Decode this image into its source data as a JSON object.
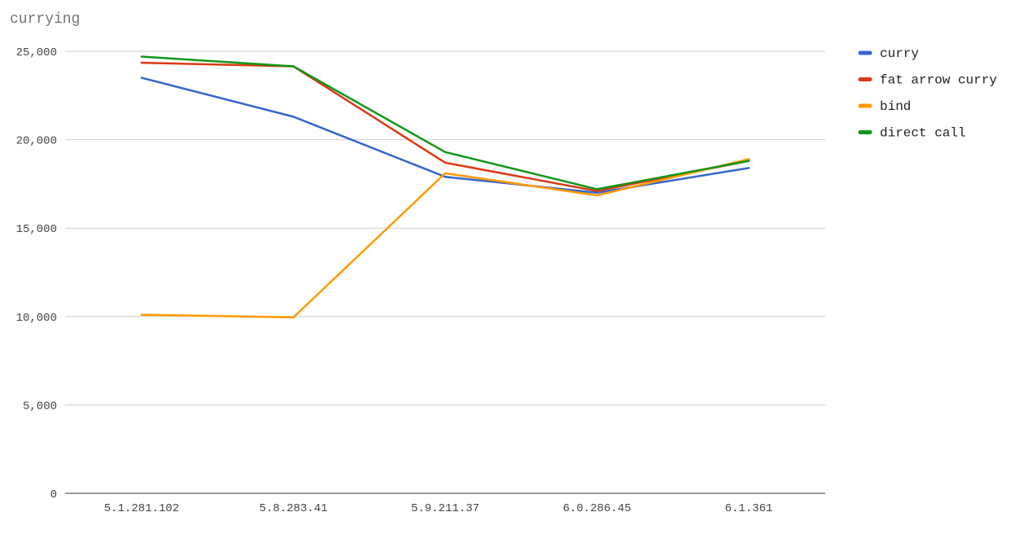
{
  "chart_data": {
    "type": "line",
    "title": "currying",
    "xlabel": "",
    "ylabel": "",
    "categories": [
      "5.1.281.102",
      "5.8.283.41",
      "5.9.211.37",
      "6.0.286.45",
      "6.1.361"
    ],
    "ylim": [
      0,
      25000
    ],
    "yticks": [
      0,
      5000,
      10000,
      15000,
      20000,
      25000
    ],
    "ytick_labels": [
      "0",
      "5,000",
      "10,000",
      "15,000",
      "20,000",
      "25,000"
    ],
    "grid": true,
    "legend_position": "right",
    "series": [
      {
        "name": "curry",
        "color": "#3366cc",
        "values": [
          23500,
          21300,
          17900,
          17000,
          18400
        ]
      },
      {
        "name": "fat arrow curry",
        "color": "#dc3912",
        "values": [
          24350,
          24150,
          18700,
          17100,
          18800
        ]
      },
      {
        "name": "bind",
        "color": "#ff9900",
        "values": [
          10100,
          9950,
          18100,
          16850,
          18900
        ]
      },
      {
        "name": "direct call",
        "color": "#109618",
        "values": [
          24700,
          24150,
          19300,
          17200,
          18800
        ]
      }
    ]
  }
}
